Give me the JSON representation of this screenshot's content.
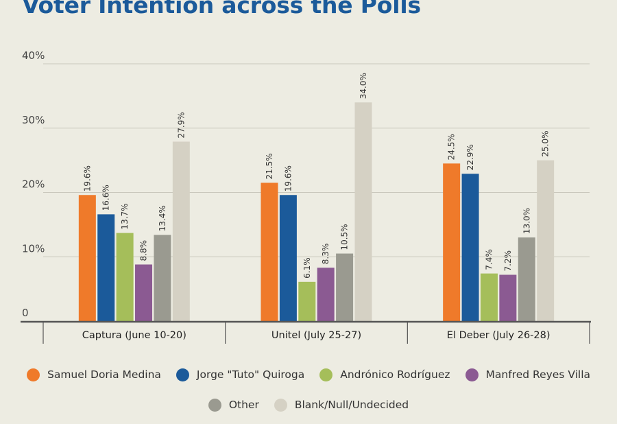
{
  "title": "Voter Intention across the Polls",
  "chart_data": {
    "type": "bar",
    "title": "Voter Intention across the Polls",
    "categories": [
      "Captura (June 10-20)",
      "Unitel (July 25-27)",
      "El Deber (July 26-28)"
    ],
    "series": [
      {
        "name": "Samuel Doria Medina",
        "color": "#ef7a2a",
        "values": [
          19.6,
          21.5,
          24.5
        ]
      },
      {
        "name": "Jorge \"Tuto\" Quiroga",
        "color": "#1b5a9a",
        "values": [
          16.6,
          19.6,
          22.9
        ]
      },
      {
        "name": "Andrónico Rodríguez",
        "color": "#a5be5a",
        "values": [
          13.7,
          6.1,
          7.4
        ]
      },
      {
        "name": "Manfred Reyes Villa",
        "color": "#8b5a92",
        "values": [
          8.8,
          8.3,
          7.2
        ]
      },
      {
        "name": "Other",
        "color": "#9a9a90",
        "values": [
          13.4,
          10.5,
          13.0
        ]
      },
      {
        "name": "Blank/Null/Undecided",
        "color": "#d5d1c4",
        "values": [
          27.9,
          34.0,
          25.0
        ]
      }
    ],
    "yticks": [
      "0",
      "10%",
      "20%",
      "30%",
      "40%"
    ],
    "ytick_values": [
      0,
      10,
      20,
      30,
      40
    ],
    "ylim": [
      0,
      40
    ],
    "value_suffix": "%",
    "xlabel": "",
    "ylabel": "",
    "grid": true,
    "legend_position": "bottom"
  }
}
